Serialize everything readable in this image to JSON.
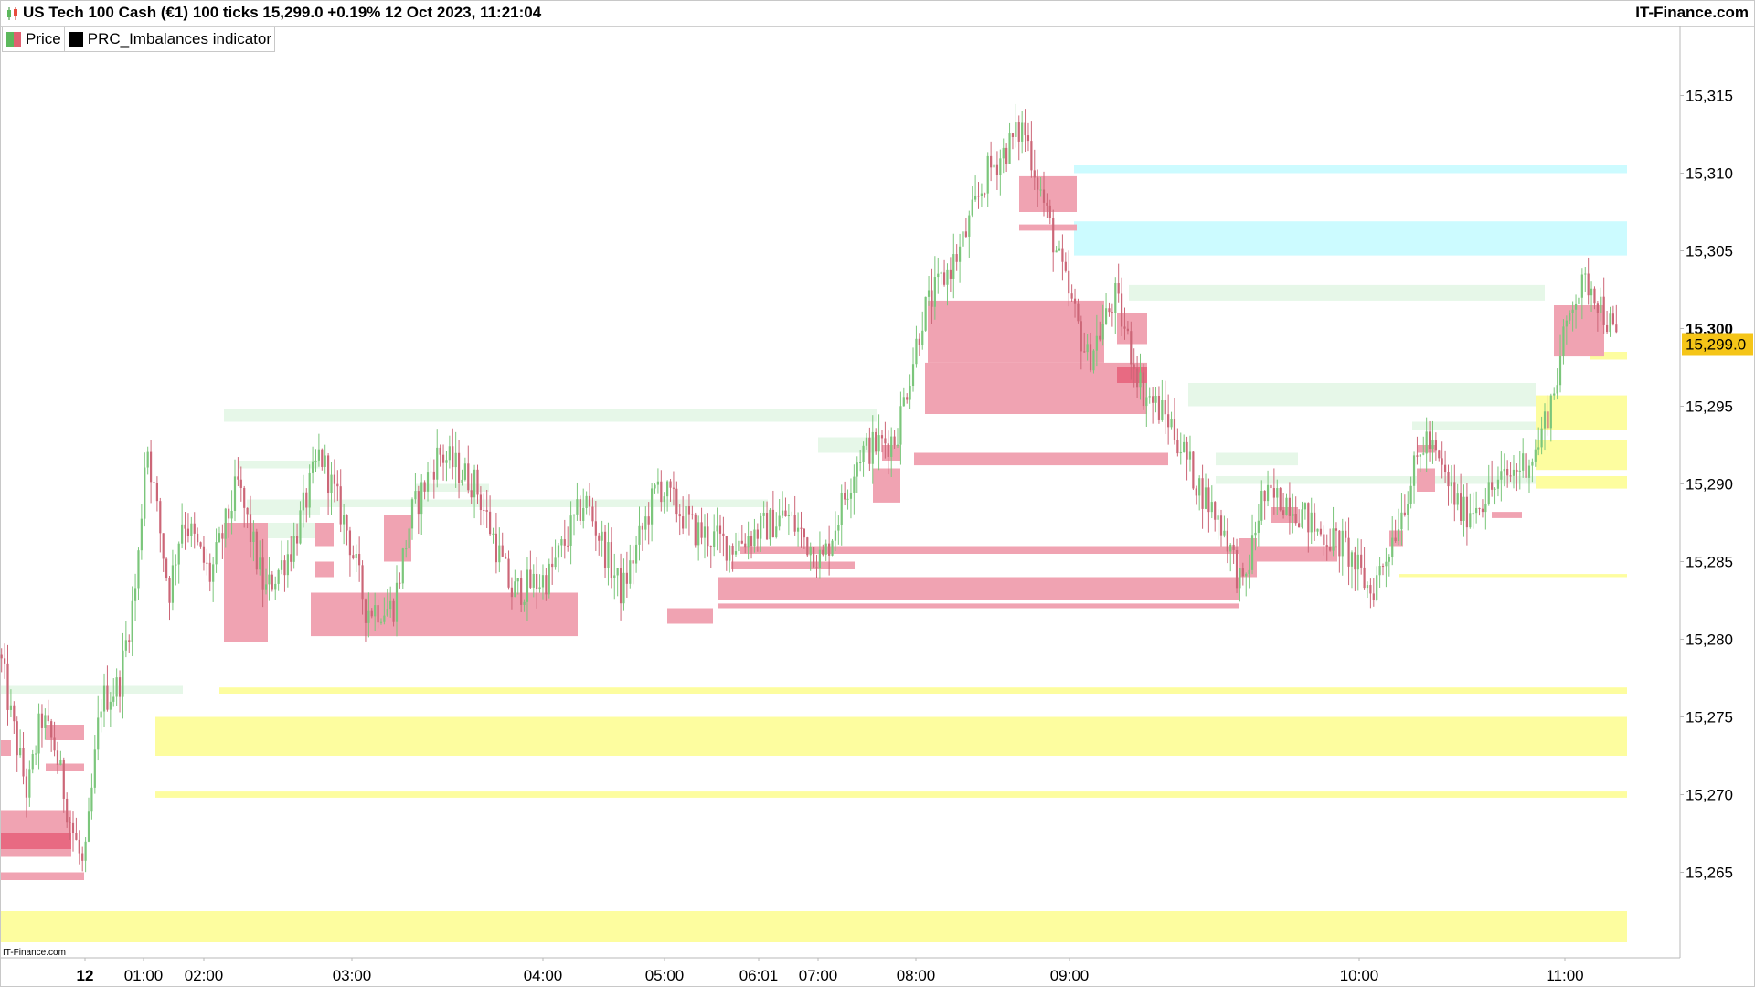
{
  "header": {
    "title": "US Tech 100 Cash (€1) 100 ticks 15,299.0 +0.19% 12 Oct 2023, 11:21:04",
    "brand": "IT-Finance.com"
  },
  "legend": {
    "items": [
      {
        "label": "Price",
        "icon": "candlestick-icon"
      },
      {
        "label": "PRC_Imbalances indicator",
        "icon": "black-square-icon"
      }
    ]
  },
  "watermark": "IT-Finance.com",
  "colors": {
    "bull": "#7bc67b",
    "bear": "#cc6677",
    "bearish_imbalance": "#f0a3b2",
    "bearish_imbalance_strong": "#e86a82",
    "bullish_imbalance_light": "#e6f7e8",
    "bullish_imbalance_cyan": "#ccfbff",
    "bullish_imbalance_yellow": "#fdfd9f",
    "last_price_bg": "#f5c518"
  },
  "chart_data": {
    "type": "candlestick",
    "instrument": "US Tech 100 Cash (€1)",
    "timeframe": "100 ticks",
    "last_price": 15299.0,
    "last_price_label": "15,299.0",
    "change_pct": "+0.19%",
    "ylim": [
      15259.5,
      15319.5
    ],
    "y_ticks": [
      15265,
      15270,
      15275,
      15280,
      15285,
      15290,
      15295,
      15300,
      15305,
      15310,
      15315
    ],
    "y_tick_labels": [
      "15,265",
      "15,270",
      "15,275",
      "15,280",
      "15,285",
      "15,290",
      "15,295",
      "15,300",
      "15,305",
      "15,310",
      "15,315"
    ],
    "y_bold_tick": "15,300",
    "x_tick_labels": [
      "12",
      "01:00",
      "02:00",
      "03:00",
      "04:00",
      "05:00",
      "06:01",
      "07:00",
      "08:00",
      "09:00",
      "10:00",
      "11:00"
    ],
    "x_bold_tick": "12",
    "n_bars": 520,
    "price_path": [
      [
        0,
        15279
      ],
      [
        12,
        15275
      ],
      [
        30,
        15270
      ],
      [
        45,
        15275
      ],
      [
        60,
        15273
      ],
      [
        78,
        15268
      ],
      [
        92,
        15265
      ],
      [
        110,
        15276
      ],
      [
        130,
        15277
      ],
      [
        150,
        15284
      ],
      [
        160,
        15293
      ],
      [
        185,
        15283
      ],
      [
        200,
        15288
      ],
      [
        230,
        15284
      ],
      [
        260,
        15290
      ],
      [
        290,
        15283
      ],
      [
        320,
        15286
      ],
      [
        350,
        15292
      ],
      [
        380,
        15287
      ],
      [
        400,
        15282
      ],
      [
        430,
        15282
      ],
      [
        450,
        15288
      ],
      [
        480,
        15292
      ],
      [
        520,
        15290
      ],
      [
        560,
        15283
      ],
      [
        600,
        15284
      ],
      [
        640,
        15289
      ],
      [
        680,
        15283
      ],
      [
        720,
        15290
      ],
      [
        760,
        15287
      ],
      [
        800,
        15286
      ],
      [
        860,
        15288
      ],
      [
        900,
        15285
      ],
      [
        940,
        15292
      ],
      [
        980,
        15293
      ],
      [
        1010,
        15301
      ],
      [
        1050,
        15305
      ],
      [
        1080,
        15310
      ],
      [
        1120,
        15313
      ],
      [
        1160,
        15304
      ],
      [
        1190,
        15298
      ],
      [
        1220,
        15302
      ],
      [
        1250,
        15296
      ],
      [
        1280,
        15294
      ],
      [
        1310,
        15290
      ],
      [
        1340,
        15287
      ],
      [
        1360,
        15283
      ],
      [
        1380,
        15289
      ],
      [
        1410,
        15289
      ],
      [
        1440,
        15287
      ],
      [
        1470,
        15286
      ],
      [
        1500,
        15283
      ],
      [
        1520,
        15286
      ],
      [
        1560,
        15293
      ],
      [
        1600,
        15288
      ],
      [
        1640,
        15290
      ],
      [
        1680,
        15292
      ],
      [
        1700,
        15296
      ],
      [
        1720,
        15302
      ],
      [
        1740,
        15303
      ],
      [
        1770,
        15299
      ]
    ],
    "zones": [
      {
        "kind": "bearish_strong",
        "from": 0,
        "to": 78,
        "lo": 15266.5,
        "hi": 15267.5
      },
      {
        "kind": "bearish",
        "from": 0,
        "to": 78,
        "lo": 15266,
        "hi": 15269
      },
      {
        "kind": "bearish",
        "from": 0,
        "to": 92,
        "lo": 15264.5,
        "hi": 15265
      },
      {
        "kind": "bearish",
        "from": 0,
        "to": 12,
        "lo": 15272.5,
        "hi": 15273.5
      },
      {
        "kind": "bearish",
        "from": 50,
        "to": 92,
        "lo": 15273.5,
        "hi": 15274.5
      },
      {
        "kind": "bearish",
        "from": 50,
        "to": 92,
        "lo": 15271.5,
        "hi": 15272
      },
      {
        "kind": "bullish_light",
        "from": 0,
        "to": 200,
        "lo": 15276.5,
        "hi": 15277
      },
      {
        "kind": "bullish_yellow",
        "from": 0,
        "to": 1780,
        "lo": 15260.5,
        "hi": 15262.5
      },
      {
        "kind": "bullish_yellow",
        "from": 170,
        "to": 1780,
        "lo": 15272.5,
        "hi": 15275
      },
      {
        "kind": "bullish_yellow",
        "from": 170,
        "to": 1780,
        "lo": 15269.8,
        "hi": 15270.2
      },
      {
        "kind": "bullish_yellow",
        "from": 240,
        "to": 1780,
        "lo": 15276.5,
        "hi": 15276.9
      },
      {
        "kind": "bearish",
        "from": 245,
        "to": 293,
        "lo": 15279.8,
        "hi": 15287.5
      },
      {
        "kind": "bearish",
        "from": 340,
        "to": 632,
        "lo": 15280.2,
        "hi": 15283
      },
      {
        "kind": "bearish",
        "from": 345,
        "to": 365,
        "lo": 15284,
        "hi": 15285
      },
      {
        "kind": "bearish",
        "from": 345,
        "to": 365,
        "lo": 15286,
        "hi": 15287.5
      },
      {
        "kind": "bearish",
        "from": 420,
        "to": 450,
        "lo": 15285,
        "hi": 15288
      },
      {
        "kind": "bearish",
        "from": 730,
        "to": 780,
        "lo": 15281,
        "hi": 15282
      },
      {
        "kind": "bearish",
        "from": 785,
        "to": 1355,
        "lo": 15282.5,
        "hi": 15284
      },
      {
        "kind": "bearish",
        "from": 785,
        "to": 1355,
        "lo": 15282,
        "hi": 15282.3
      },
      {
        "kind": "bearish",
        "from": 800,
        "to": 935,
        "lo": 15284.5,
        "hi": 15285
      },
      {
        "kind": "bearish",
        "from": 810,
        "to": 1355,
        "lo": 15285.5,
        "hi": 15286
      },
      {
        "kind": "bearish",
        "from": 955,
        "to": 985,
        "lo": 15288.8,
        "hi": 15291
      },
      {
        "kind": "bearish",
        "from": 965,
        "to": 985,
        "lo": 15291.5,
        "hi": 15292.5
      },
      {
        "kind": "bearish",
        "from": 1000,
        "to": 1278,
        "lo": 15291.2,
        "hi": 15292
      },
      {
        "kind": "bearish",
        "from": 1012,
        "to": 1255,
        "lo": 15294.5,
        "hi": 15297.8
      },
      {
        "kind": "bearish",
        "from": 1015,
        "to": 1208,
        "lo": 15297.8,
        "hi": 15301.8
      },
      {
        "kind": "bearish_strong",
        "from": 1222,
        "to": 1255,
        "lo": 15296.5,
        "hi": 15297.5
      },
      {
        "kind": "bearish",
        "from": 1222,
        "to": 1255,
        "lo": 15299,
        "hi": 15301
      },
      {
        "kind": "bearish",
        "from": 1115,
        "to": 1178,
        "lo": 15306.3,
        "hi": 15306.7
      },
      {
        "kind": "bearish",
        "from": 1115,
        "to": 1178,
        "lo": 15307.5,
        "hi": 15309.8
      },
      {
        "kind": "bearish",
        "from": 1355,
        "to": 1375,
        "lo": 15284,
        "hi": 15286.5
      },
      {
        "kind": "bearish",
        "from": 1355,
        "to": 1463,
        "lo": 15285,
        "hi": 15286
      },
      {
        "kind": "bearish",
        "from": 1390,
        "to": 1420,
        "lo": 15287.5,
        "hi": 15288.5
      },
      {
        "kind": "bearish",
        "from": 1520,
        "to": 1535,
        "lo": 15286,
        "hi": 15287
      },
      {
        "kind": "bearish",
        "from": 1550,
        "to": 1570,
        "lo": 15289.5,
        "hi": 15291
      },
      {
        "kind": "bearish",
        "from": 1550,
        "to": 1570,
        "lo": 15292,
        "hi": 15292.5
      },
      {
        "kind": "bearish",
        "from": 1632,
        "to": 1665,
        "lo": 15287.8,
        "hi": 15288.2
      },
      {
        "kind": "bearish",
        "from": 1700,
        "to": 1755,
        "lo": 15298.2,
        "hi": 15301.5
      },
      {
        "kind": "bearish",
        "from": 1700,
        "to": 1755,
        "lo": 15299.5,
        "hi": 15300
      },
      {
        "kind": "bullish_light",
        "from": 245,
        "to": 960,
        "lo": 15294,
        "hi": 15294.8
      },
      {
        "kind": "bullish_light",
        "from": 260,
        "to": 350,
        "lo": 15291,
        "hi": 15291.5
      },
      {
        "kind": "bullish_light",
        "from": 270,
        "to": 350,
        "lo": 15288,
        "hi": 15289
      },
      {
        "kind": "bullish_light",
        "from": 260,
        "to": 350,
        "lo": 15286.5,
        "hi": 15287.5
      },
      {
        "kind": "bullish_light",
        "from": 340,
        "to": 840,
        "lo": 15288.5,
        "hi": 15289
      },
      {
        "kind": "bullish_light",
        "from": 455,
        "to": 535,
        "lo": 15289.5,
        "hi": 15290
      },
      {
        "kind": "bullish_light",
        "from": 895,
        "to": 960,
        "lo": 15292,
        "hi": 15293
      },
      {
        "kind": "bullish_light",
        "from": 1300,
        "to": 1680,
        "lo": 15295,
        "hi": 15296.5
      },
      {
        "kind": "bullish_light",
        "from": 1235,
        "to": 1690,
        "lo": 15301.8,
        "hi": 15302.8
      },
      {
        "kind": "bullish_light",
        "from": 1330,
        "to": 1420,
        "lo": 15291.2,
        "hi": 15292
      },
      {
        "kind": "bullish_light",
        "from": 1330,
        "to": 1575,
        "lo": 15290,
        "hi": 15290.5
      },
      {
        "kind": "bullish_light",
        "from": 1400,
        "to": 1680,
        "lo": 15290,
        "hi": 15290.5
      },
      {
        "kind": "bullish_light",
        "from": 1545,
        "to": 1700,
        "lo": 15293.5,
        "hi": 15294
      },
      {
        "kind": "bullish_cyan",
        "from": 1175,
        "to": 1780,
        "lo": 15310,
        "hi": 15310.5
      },
      {
        "kind": "bullish_cyan",
        "from": 1175,
        "to": 1780,
        "lo": 15304.7,
        "hi": 15306.9
      },
      {
        "kind": "bullish_yellow",
        "from": 1680,
        "to": 1780,
        "lo": 15293.5,
        "hi": 15295.7
      },
      {
        "kind": "bullish_yellow",
        "from": 1680,
        "to": 1780,
        "lo": 15290.9,
        "hi": 15292.8
      },
      {
        "kind": "bullish_yellow",
        "from": 1680,
        "to": 1780,
        "lo": 15289.7,
        "hi": 15290.5
      },
      {
        "kind": "bullish_yellow",
        "from": 1740,
        "to": 1780,
        "lo": 15298,
        "hi": 15298.5
      },
      {
        "kind": "bullish_yellow",
        "from": 1530,
        "to": 1780,
        "lo": 15284,
        "hi": 15284.2
      }
    ]
  }
}
